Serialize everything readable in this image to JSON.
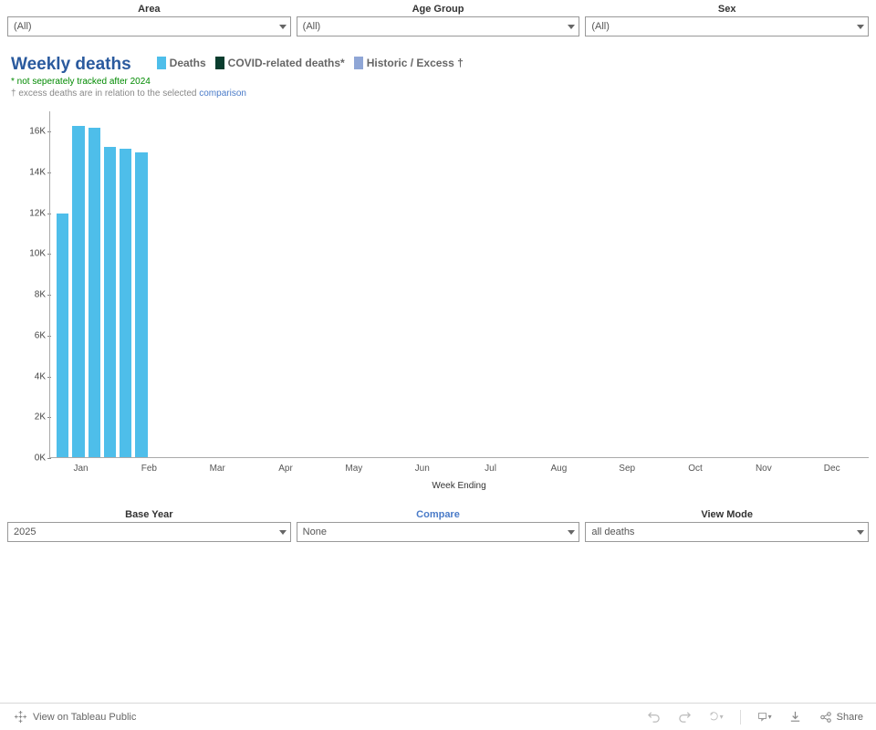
{
  "filters_top": [
    {
      "label": "Area",
      "value": "(All)"
    },
    {
      "label": "Age Group",
      "value": "(All)"
    },
    {
      "label": "Sex",
      "value": "(All)"
    }
  ],
  "filters_bottom": [
    {
      "label": "Base Year",
      "value": "2025",
      "highlight": false
    },
    {
      "label": "Compare",
      "value": "None",
      "highlight": true
    },
    {
      "label": "View Mode",
      "value": "all deaths",
      "highlight": false
    }
  ],
  "title": "Weekly deaths",
  "legend": [
    {
      "label": "Deaths",
      "color": "#4ebeea"
    },
    {
      "label": "COVID-related deaths*",
      "color": "#0a3d2e"
    },
    {
      "label": "Historic / Excess †",
      "color": "#8fa6d6"
    }
  ],
  "note1": "* not seperately tracked after 2024",
  "note2_prefix": "† excess deaths are in relation to the selected ",
  "note2_link": "comparison",
  "chart": {
    "type": "bar",
    "x_label": "Week Ending",
    "y_max": 17000,
    "y_ticks": [
      0,
      2000,
      4000,
      6000,
      8000,
      10000,
      12000,
      14000,
      16000
    ],
    "y_tick_labels": [
      "0K",
      "2K",
      "4K",
      "6K",
      "8K",
      "10K",
      "12K",
      "14K",
      "16K"
    ],
    "months": [
      "Jan",
      "Feb",
      "Mar",
      "Apr",
      "May",
      "Jun",
      "Jul",
      "Aug",
      "Sep",
      "Oct",
      "Nov",
      "Dec"
    ],
    "n_weeks": 52,
    "bars": [
      {
        "week": 0,
        "value": 11950
      },
      {
        "week": 1,
        "value": 16250
      },
      {
        "week": 2,
        "value": 16150
      },
      {
        "week": 3,
        "value": 15200
      },
      {
        "week": 4,
        "value": 15100
      },
      {
        "week": 5,
        "value": 14950
      }
    ],
    "bar_color": "#4ebeea",
    "bar_border": "#ffffff",
    "axis_color": "#aaaaaa",
    "tick_font_size": 10
  },
  "footer": {
    "view_label": "View on Tableau Public",
    "share_label": "Share"
  }
}
